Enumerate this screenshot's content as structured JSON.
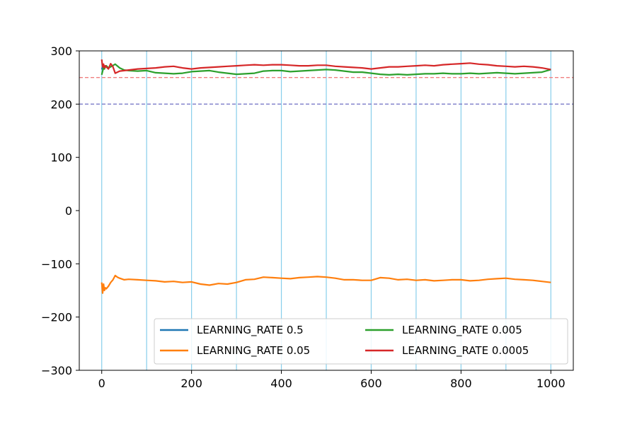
{
  "chart_data": {
    "type": "line",
    "title": "",
    "xlabel": "",
    "ylabel": "",
    "xlim": [
      -50,
      1050
    ],
    "ylim": [
      -300,
      300
    ],
    "xticks": [
      0,
      200,
      400,
      600,
      800,
      1000
    ],
    "yticks": [
      -300,
      -200,
      -100,
      0,
      100,
      200,
      300
    ],
    "xtick_labels": [
      "0",
      "200",
      "400",
      "600",
      "800",
      "1000"
    ],
    "ytick_labels": [
      "−300",
      "−200",
      "−100",
      "0",
      "100",
      "200",
      "300"
    ],
    "vertical_lines": {
      "x": [
        0,
        100,
        200,
        300,
        400,
        500,
        600,
        700,
        800,
        900,
        1000
      ],
      "color": "#87ceeb"
    },
    "horizontal_lines": [
      {
        "y": 250,
        "color": "#f08080",
        "style": "dashed"
      },
      {
        "y": 200,
        "color": "#7b7bc8",
        "style": "dashed"
      }
    ],
    "legend": {
      "position": "lower right",
      "columns": 2
    },
    "series": [
      {
        "name": "LEARNING_RATE 0.5",
        "color": "#1f77b4",
        "x": [
          0,
          2,
          4
        ],
        "y": [
          265,
          270,
          268
        ]
      },
      {
        "name": "LEARNING_RATE 0.05",
        "color": "#ff7f0e",
        "x": [
          0,
          2,
          4,
          6,
          8,
          10,
          15,
          20,
          25,
          30,
          35,
          40,
          50,
          60,
          80,
          100,
          120,
          140,
          160,
          180,
          200,
          220,
          240,
          260,
          280,
          300,
          320,
          340,
          360,
          380,
          400,
          420,
          440,
          460,
          480,
          500,
          520,
          540,
          560,
          580,
          600,
          620,
          640,
          660,
          680,
          700,
          720,
          740,
          760,
          780,
          800,
          820,
          840,
          860,
          880,
          900,
          920,
          940,
          960,
          980,
          1000
        ],
        "y": [
          -135,
          -155,
          -138,
          -150,
          -145,
          -147,
          -142,
          -135,
          -130,
          -122,
          -125,
          -127,
          -130,
          -129,
          -130,
          -131,
          -132,
          -134,
          -133,
          -135,
          -134,
          -138,
          -140,
          -137,
          -138,
          -135,
          -130,
          -129,
          -125,
          -126,
          -127,
          -128,
          -126,
          -125,
          -124,
          -125,
          -127,
          -130,
          -130,
          -131,
          -131,
          -126,
          -127,
          -130,
          -129,
          -131,
          -130,
          -132,
          -131,
          -130,
          -130,
          -132,
          -131,
          -129,
          -128,
          -127,
          -129,
          -130,
          -131,
          -133,
          -135
        ]
      },
      {
        "name": "LEARNING_RATE 0.005",
        "color": "#2ca02c",
        "x": [
          0,
          2,
          4,
          6,
          8,
          10,
          15,
          20,
          30,
          40,
          50,
          60,
          80,
          100,
          120,
          140,
          160,
          180,
          200,
          220,
          240,
          260,
          280,
          300,
          320,
          340,
          360,
          380,
          400,
          420,
          440,
          460,
          480,
          500,
          520,
          540,
          560,
          580,
          600,
          620,
          640,
          660,
          680,
          700,
          720,
          740,
          760,
          780,
          800,
          820,
          840,
          860,
          880,
          900,
          920,
          940,
          960,
          980,
          1000
        ],
        "y": [
          255,
          262,
          268,
          266,
          270,
          272,
          268,
          270,
          275,
          268,
          264,
          263,
          262,
          263,
          259,
          258,
          257,
          258,
          261,
          262,
          263,
          260,
          258,
          256,
          257,
          258,
          262,
          263,
          263,
          261,
          262,
          263,
          264,
          265,
          264,
          262,
          260,
          260,
          258,
          256,
          255,
          256,
          255,
          256,
          257,
          257,
          258,
          257,
          257,
          258,
          257,
          258,
          259,
          258,
          257,
          258,
          259,
          260,
          265
        ]
      },
      {
        "name": "LEARNING_RATE 0.0005",
        "color": "#d62728",
        "x": [
          0,
          2,
          4,
          6,
          8,
          10,
          15,
          20,
          25,
          30,
          40,
          50,
          60,
          80,
          100,
          120,
          140,
          160,
          180,
          200,
          220,
          240,
          260,
          280,
          300,
          320,
          340,
          360,
          380,
          400,
          420,
          440,
          460,
          480,
          500,
          520,
          540,
          560,
          580,
          600,
          620,
          640,
          660,
          680,
          700,
          720,
          740,
          760,
          780,
          800,
          820,
          840,
          860,
          880,
          900,
          920,
          940,
          960,
          980,
          1000
        ],
        "y": [
          284,
          270,
          275,
          268,
          272,
          270,
          266,
          276,
          270,
          258,
          262,
          263,
          264,
          266,
          267,
          268,
          270,
          271,
          268,
          266,
          268,
          269,
          270,
          271,
          272,
          273,
          274,
          273,
          274,
          274,
          273,
          272,
          272,
          273,
          273,
          271,
          270,
          269,
          268,
          266,
          268,
          270,
          270,
          271,
          272,
          273,
          272,
          274,
          275,
          276,
          277,
          275,
          274,
          272,
          271,
          270,
          271,
          270,
          268,
          265
        ]
      }
    ]
  }
}
